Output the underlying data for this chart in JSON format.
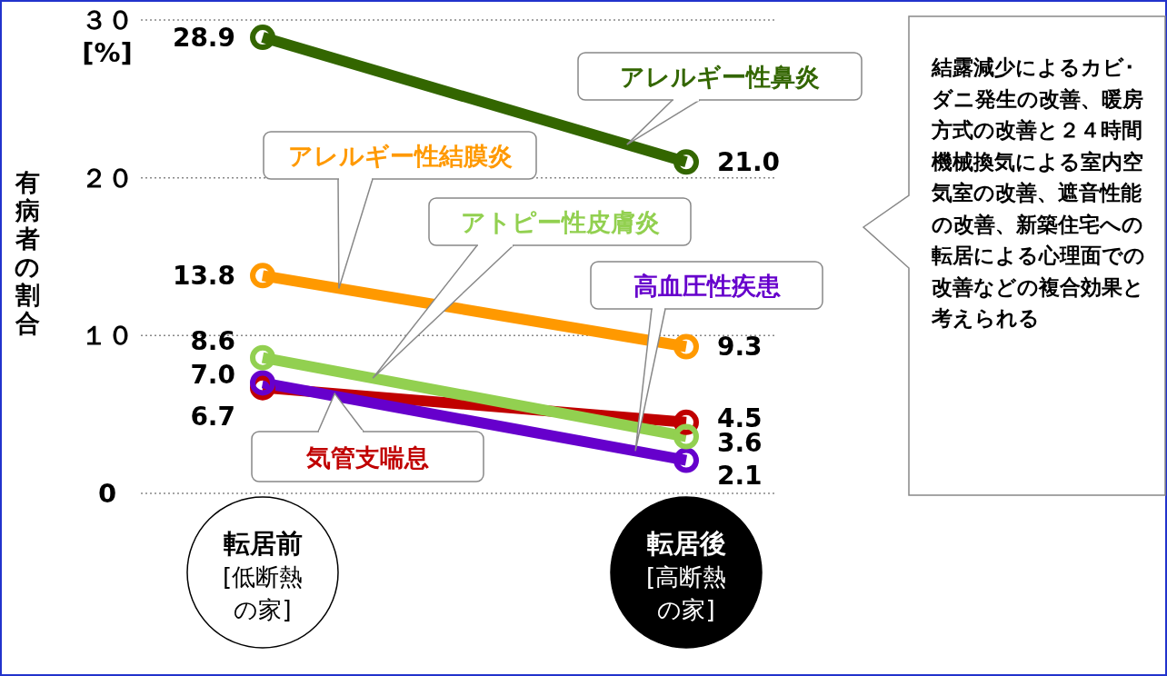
{
  "chart_data": {
    "type": "line",
    "categories": [
      "転居前[低断熱の家]",
      "転居後[高断熱の家]"
    ],
    "ylabel": "有病者の割合",
    "ylim": [
      0,
      30
    ],
    "yticks": [
      {
        "value": 0,
        "label": "0"
      },
      {
        "value": 10,
        "label": "１０"
      },
      {
        "value": 20,
        "label": "２０"
      },
      {
        "value": 30,
        "label": "３０\n[%]"
      }
    ],
    "grid": "y",
    "marker": "circle",
    "series": [
      {
        "name": "アレルギー性鼻炎",
        "color": "#336600",
        "values": [
          28.9,
          21.0
        ],
        "value_labels": [
          "28.9",
          "21.0"
        ]
      },
      {
        "name": "アレルギー性結膜炎",
        "color": "#ff9900",
        "values": [
          13.8,
          9.3
        ],
        "value_labels": [
          "13.8",
          "9.3"
        ]
      },
      {
        "name": "アトピー性皮膚炎",
        "color": "#92d050",
        "values": [
          8.6,
          3.6
        ],
        "value_labels": [
          "8.6",
          "3.6"
        ]
      },
      {
        "name": "高血圧性疾患",
        "color": "#6600cc",
        "values": [
          7.0,
          2.1
        ],
        "value_labels": [
          "7.0",
          "2.1"
        ]
      },
      {
        "name": "気管支喘息",
        "color": "#c00000",
        "values": [
          6.7,
          4.5
        ],
        "value_labels": [
          "6.7",
          "4.5"
        ]
      }
    ],
    "annotations": [
      "結露減少によるカビ･ダニ発生の改善、暖房方式の改善と２４時間機械換気による室内空気室の改善、遮音性能の改善、新築住宅への転居による心理面での改善などの複合効果と考えられる"
    ]
  }
}
